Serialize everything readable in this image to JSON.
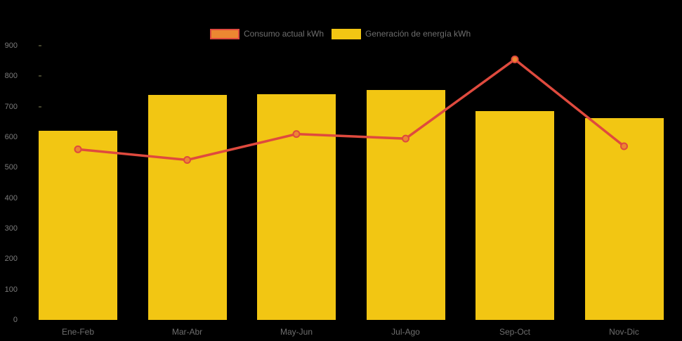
{
  "chart_data": {
    "type": "bar+line",
    "categories": [
      "Ene-Feb",
      "Mar-Abr",
      "May-Jun",
      "Jul-Ago",
      "Sep-Oct",
      "Nov-Dic"
    ],
    "series": [
      {
        "name": "Consumo actual kWh",
        "type": "line",
        "values": [
          560,
          525,
          610,
          595,
          855,
          570
        ],
        "line_color": "#DF4A3E",
        "marker_color": "#EC8731"
      },
      {
        "name": "Generación de energía kWh",
        "type": "bar",
        "values": [
          620,
          738,
          741,
          755,
          685,
          663
        ],
        "bar_color": "#F2C613"
      }
    ],
    "ylim": [
      0,
      900
    ],
    "y_ticks": [
      0,
      100,
      200,
      300,
      400,
      500,
      600,
      700,
      800,
      900
    ],
    "grid": false,
    "legend_position": "top-center",
    "background_color": "#000000",
    "axis_text_color": "#7b7b7b",
    "category_text_color": "#6e6e6e",
    "legend_text_color": "#6e6e6e",
    "tick_mark_color": "#44442c"
  }
}
